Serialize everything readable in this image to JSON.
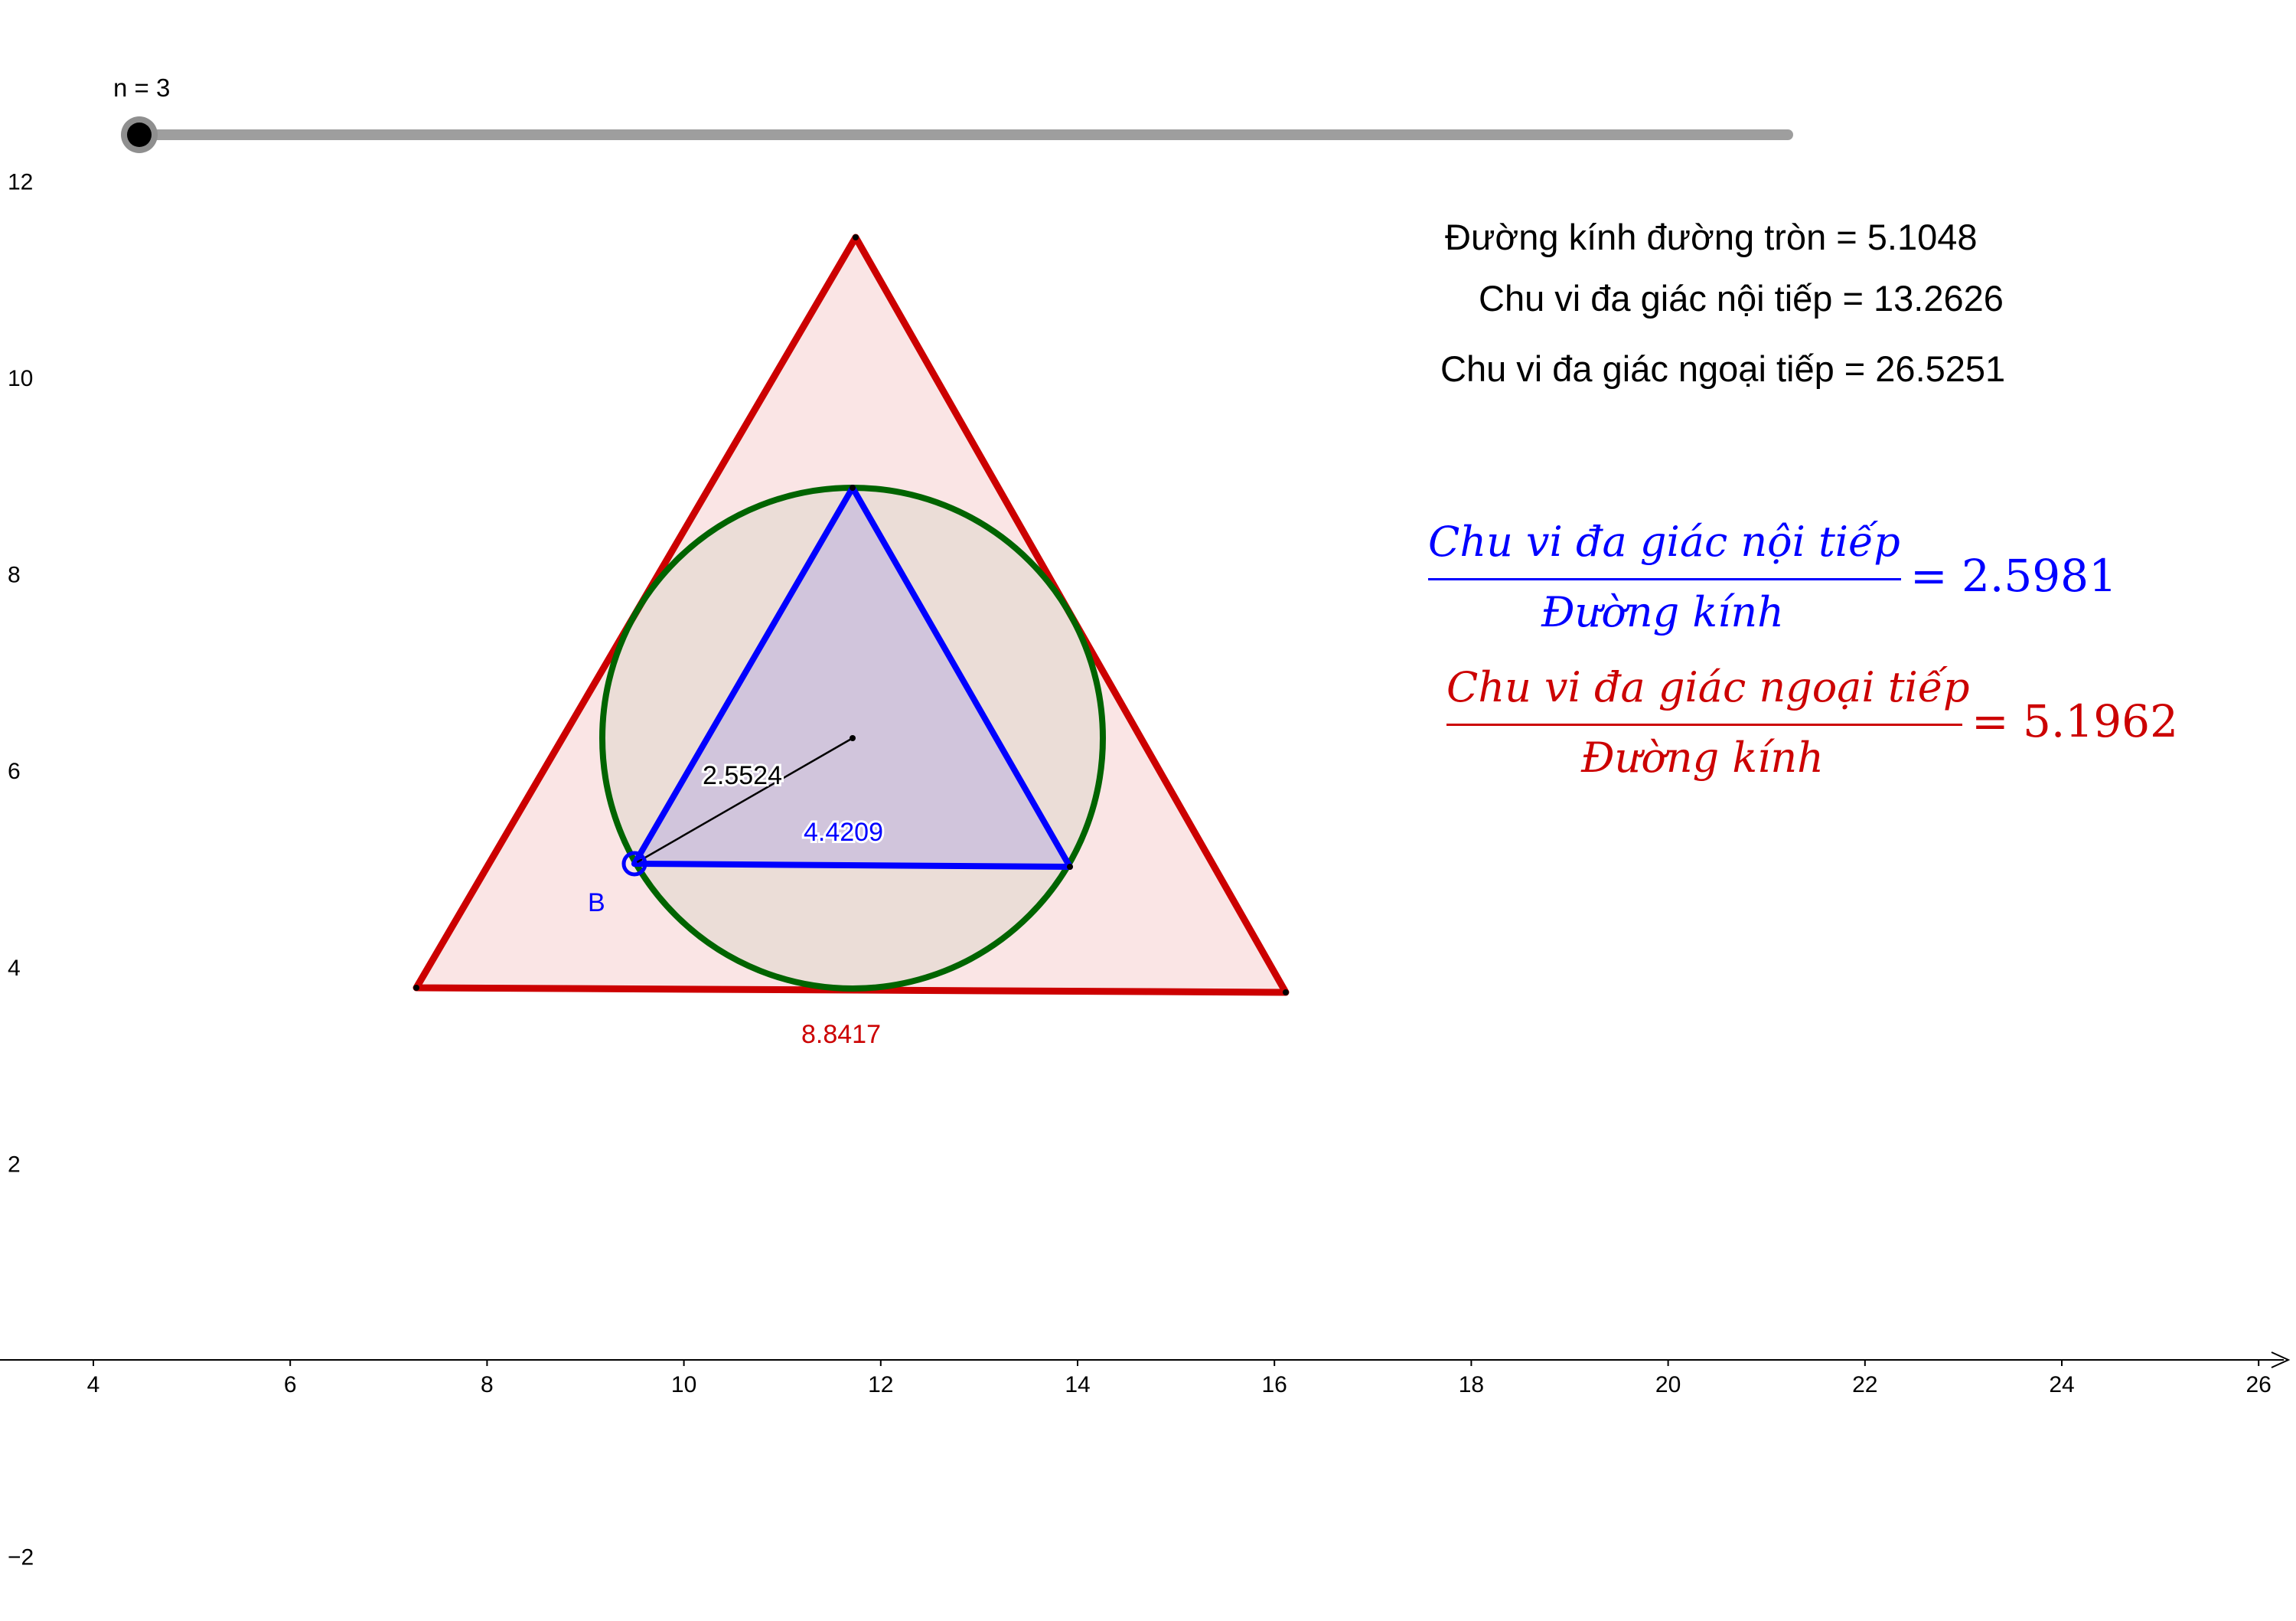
{
  "slider": {
    "label": "n = 3",
    "value": 3
  },
  "axes": {
    "x_ticks": [
      "4",
      "6",
      "8",
      "10",
      "12",
      "14",
      "16",
      "18",
      "20",
      "22",
      "24",
      "26"
    ],
    "y_ticks": [
      "12",
      "10",
      "8",
      "6",
      "4",
      "2",
      "−2"
    ]
  },
  "labels": {
    "radius": "2.5524",
    "inner_side": "4.4209",
    "outer_side": "8.8417",
    "point_b": "B"
  },
  "info": {
    "diameter": "Đường kính đường tròn = 5.1048",
    "inscribed_perimeter": "Chu vi đa giác nội tiếp = 13.2626",
    "circumscribed_perimeter": "Chu vi đa giác ngoại tiếp = 26.5251"
  },
  "ratios": {
    "inscribed": {
      "numerator": "Chu vi đa giác nội tiếp",
      "denominator": "Đường kính",
      "value": "= 2.5981"
    },
    "circumscribed": {
      "numerator": "Chu vi đa giác ngoại tiếp",
      "denominator": "Đường kính",
      "value": "= 5.1962"
    }
  },
  "colors": {
    "outer_polygon": "#cc0000",
    "inner_polygon": "#0000ff",
    "circle": "#006400",
    "ratio_inscribed": "#0000ff",
    "ratio_circumscribed": "#cc0000"
  }
}
